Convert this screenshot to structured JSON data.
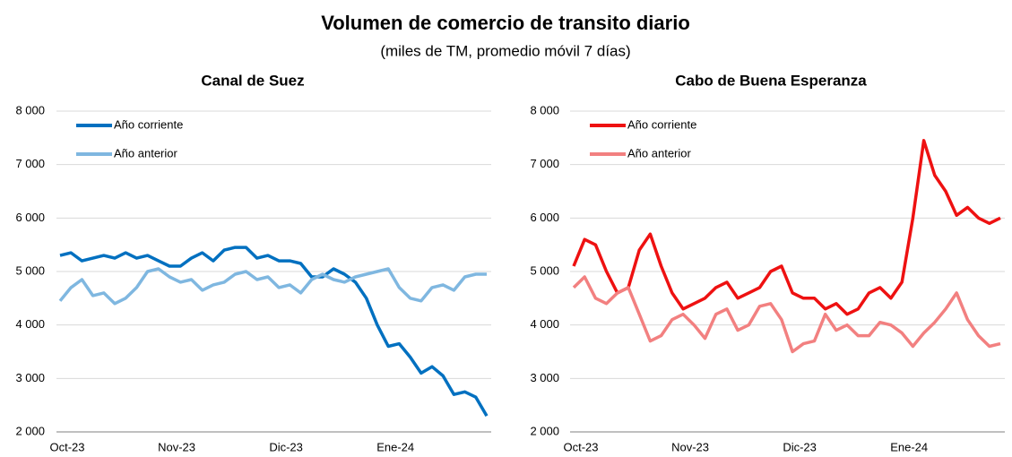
{
  "title": "Volumen de comercio de transito diario",
  "subtitle": "(miles de TM, promedio móvil 7 días)",
  "chart_data": [
    {
      "type": "line",
      "title": "Canal de Suez",
      "categories": [
        "Oct-23",
        null,
        null,
        null,
        null,
        null,
        null,
        null,
        null,
        null,
        "Nov-23",
        null,
        null,
        null,
        null,
        null,
        null,
        null,
        null,
        null,
        "Dic-23",
        null,
        null,
        null,
        null,
        null,
        null,
        null,
        null,
        null,
        "Ene-24",
        null,
        null,
        null,
        null,
        null,
        null,
        null,
        null,
        null
      ],
      "series": [
        {
          "name": "Año corriente",
          "color": "#0070c0",
          "values": [
            5300,
            5350,
            5200,
            5250,
            5300,
            5250,
            5350,
            5250,
            5300,
            5200,
            5100,
            5100,
            5250,
            5350,
            5200,
            5400,
            5450,
            5450,
            5250,
            5300,
            5200,
            5200,
            5150,
            4900,
            4900,
            5050,
            4950,
            4800,
            4500,
            4000,
            3600,
            3650,
            3400,
            3100,
            3220,
            3050,
            2700,
            2750,
            2650,
            2300
          ]
        },
        {
          "name": "Año anterior",
          "color": "#7fb7e0",
          "values": [
            4450,
            4700,
            4850,
            4550,
            4600,
            4400,
            4500,
            4700,
            5000,
            5050,
            4900,
            4800,
            4850,
            4650,
            4750,
            4800,
            4950,
            5000,
            4850,
            4900,
            4700,
            4750,
            4600,
            4850,
            4950,
            4850,
            4800,
            4900,
            4950,
            5000,
            5050,
            4700,
            4500,
            4450,
            4700,
            4750,
            4650,
            4900,
            4950,
            4950
          ]
        }
      ],
      "ylim": [
        2000,
        8000
      ],
      "yticks": [
        {
          "value": 2000,
          "label": "2 000"
        },
        {
          "value": 3000,
          "label": "3 000"
        },
        {
          "value": 4000,
          "label": "4 000"
        },
        {
          "value": 5000,
          "label": "5 000"
        },
        {
          "value": 6000,
          "label": "6 000"
        },
        {
          "value": 7000,
          "label": "7 000"
        },
        {
          "value": 8000,
          "label": "8 000"
        }
      ],
      "grid": true,
      "legend": "upper left"
    },
    {
      "type": "line",
      "title": "Cabo de Buena Esperanza",
      "categories": [
        "Oct-23",
        null,
        null,
        null,
        null,
        null,
        null,
        null,
        null,
        null,
        "Nov-23",
        null,
        null,
        null,
        null,
        null,
        null,
        null,
        null,
        null,
        "Dic-23",
        null,
        null,
        null,
        null,
        null,
        null,
        null,
        null,
        null,
        "Ene-24",
        null,
        null,
        null,
        null,
        null,
        null,
        null,
        null,
        null
      ],
      "series": [
        {
          "name": "Año corriente",
          "color": "#ee1111",
          "values": [
            5100,
            5600,
            5500,
            5000,
            4600,
            4700,
            5400,
            5700,
            5100,
            4600,
            4300,
            4400,
            4500,
            4700,
            4800,
            4500,
            4600,
            4700,
            5000,
            5100,
            4600,
            4500,
            4500,
            4300,
            4400,
            4200,
            4300,
            4600,
            4700,
            4500,
            4800,
            6000,
            7450,
            6800,
            6500,
            6050,
            6200,
            6000,
            5900,
            6000
          ]
        },
        {
          "name": "Año anterior",
          "color": "#f28080",
          "values": [
            4700,
            4900,
            4500,
            4400,
            4600,
            4700,
            4200,
            3700,
            3800,
            4100,
            4200,
            4000,
            3750,
            4200,
            4300,
            3900,
            4000,
            4350,
            4400,
            4100,
            3500,
            3650,
            3700,
            4200,
            3900,
            4000,
            3800,
            3800,
            4050,
            4000,
            3850,
            3600,
            3850,
            4050,
            4300,
            4600,
            4100,
            3800,
            3600,
            3650
          ]
        }
      ],
      "ylim": [
        2000,
        8000
      ],
      "yticks": [
        {
          "value": 2000,
          "label": "2 000"
        },
        {
          "value": 3000,
          "label": "3 000"
        },
        {
          "value": 4000,
          "label": "4 000"
        },
        {
          "value": 5000,
          "label": "5 000"
        },
        {
          "value": 6000,
          "label": "6 000"
        },
        {
          "value": 7000,
          "label": "7 000"
        },
        {
          "value": 8000,
          "label": "8 000"
        }
      ],
      "grid": true,
      "legend": "upper left"
    }
  ]
}
